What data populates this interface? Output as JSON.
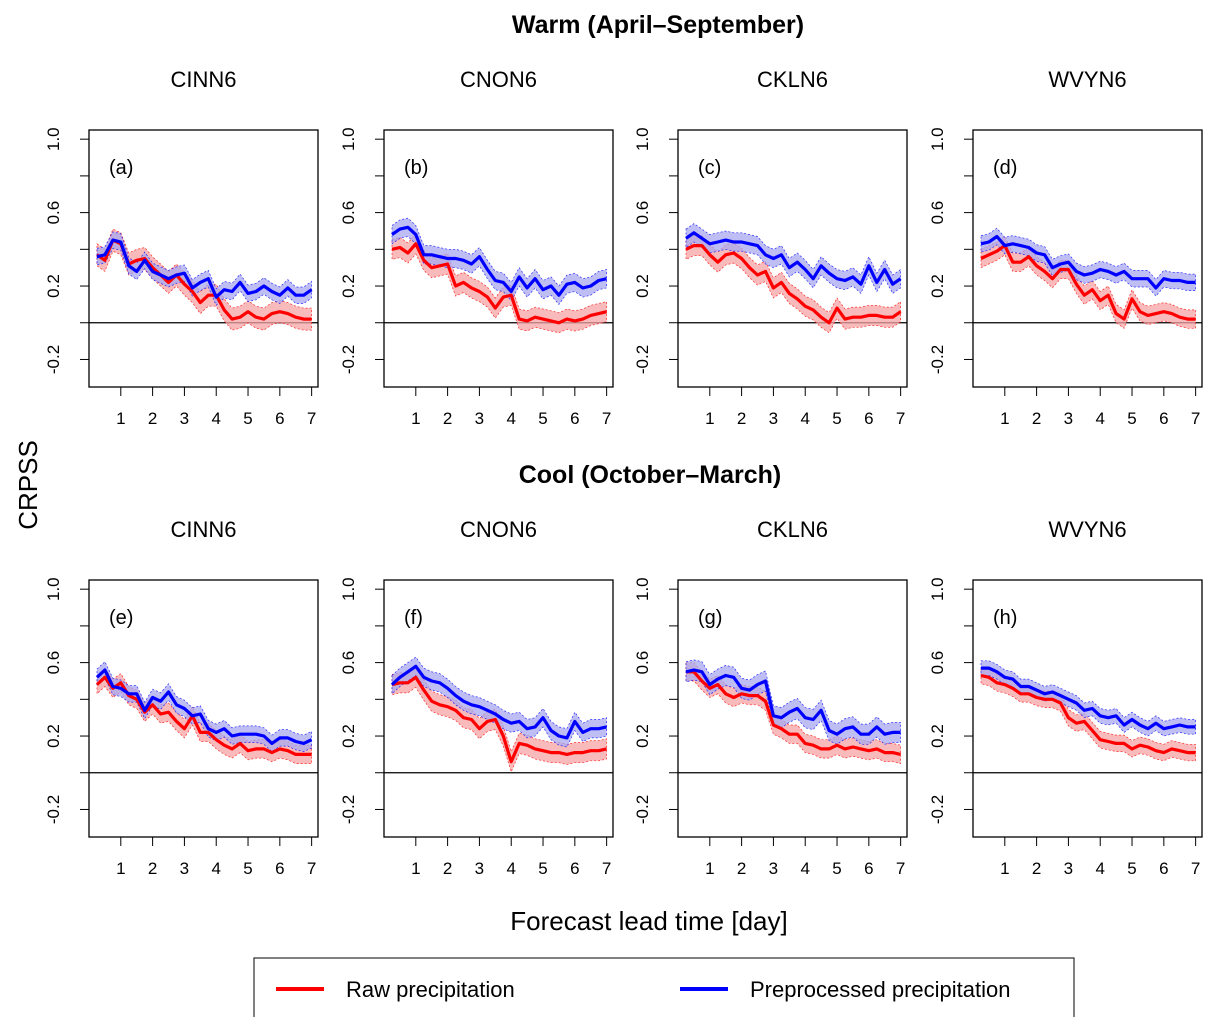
{
  "section_titles": [
    "Warm (April–September)",
    "Cool (October–March)"
  ],
  "ylabel": "CRPSS",
  "xlabel": "Forecast lead time [day]",
  "legend": {
    "raw": "Raw precipitation",
    "pre": "Preprocessed precipitation"
  },
  "colors": {
    "raw": "#ff0000",
    "raw_band": "#f5a3a3",
    "pre": "#0000ff",
    "pre_band": "#a8a8f0"
  },
  "chart_data": [
    {
      "type": "line",
      "section": "Warm (April–September)",
      "title": "CINN6",
      "panel_label": "(a)",
      "xticks": [
        1,
        2,
        3,
        4,
        5,
        6,
        7
      ],
      "yticks": [
        1.0,
        0.6,
        0.2,
        -0.2
      ],
      "zero_line": 0,
      "ylim": [
        -0.35,
        1.05
      ],
      "xlim": [
        0,
        7.2
      ],
      "x": [
        0.25,
        0.5,
        0.75,
        1.0,
        1.25,
        1.5,
        1.75,
        2.0,
        2.25,
        2.5,
        2.75,
        3.0,
        3.25,
        3.5,
        3.75,
        4.0,
        4.25,
        4.5,
        4.75,
        5.0,
        5.25,
        5.5,
        5.75,
        6.0,
        6.25,
        6.5,
        6.75,
        7.0
      ],
      "series": [
        {
          "name": "Raw precipitation",
          "values": [
            0.37,
            0.34,
            0.45,
            0.43,
            0.32,
            0.34,
            0.35,
            0.3,
            0.26,
            0.22,
            0.26,
            0.21,
            0.17,
            0.11,
            0.15,
            0.15,
            0.07,
            0.02,
            0.03,
            0.06,
            0.03,
            0.02,
            0.05,
            0.06,
            0.05,
            0.03,
            0.02,
            0.02
          ],
          "band": 0.06
        },
        {
          "name": "Preprocessed precipitation",
          "values": [
            0.36,
            0.37,
            0.45,
            0.44,
            0.31,
            0.28,
            0.34,
            0.28,
            0.26,
            0.24,
            0.26,
            0.27,
            0.19,
            0.22,
            0.24,
            0.14,
            0.18,
            0.17,
            0.22,
            0.16,
            0.17,
            0.2,
            0.17,
            0.15,
            0.19,
            0.15,
            0.15,
            0.18
          ],
          "band": 0.045
        }
      ]
    },
    {
      "type": "line",
      "section": "Warm (April–September)",
      "title": "CNON6",
      "panel_label": "(b)",
      "xticks": [
        1,
        2,
        3,
        4,
        5,
        6,
        7
      ],
      "yticks": [
        1.0,
        0.6,
        0.2,
        -0.2
      ],
      "zero_line": 0,
      "ylim": [
        -0.35,
        1.05
      ],
      "xlim": [
        0,
        7.2
      ],
      "x": [
        0.25,
        0.5,
        0.75,
        1.0,
        1.25,
        1.5,
        1.75,
        2.0,
        2.25,
        2.5,
        2.75,
        3.0,
        3.25,
        3.5,
        3.75,
        4.0,
        4.25,
        4.5,
        4.75,
        5.0,
        5.25,
        5.5,
        5.75,
        6.0,
        6.25,
        6.5,
        6.75,
        7.0
      ],
      "series": [
        {
          "name": "Raw precipitation",
          "values": [
            0.4,
            0.41,
            0.38,
            0.43,
            0.34,
            0.3,
            0.31,
            0.32,
            0.2,
            0.22,
            0.19,
            0.17,
            0.14,
            0.08,
            0.14,
            0.15,
            0.02,
            0.01,
            0.03,
            0.02,
            0.01,
            0.0,
            0.02,
            0.01,
            0.02,
            0.04,
            0.05,
            0.06
          ],
          "band": 0.055
        },
        {
          "name": "Preprocessed precipitation",
          "values": [
            0.48,
            0.51,
            0.52,
            0.48,
            0.37,
            0.37,
            0.36,
            0.35,
            0.35,
            0.34,
            0.32,
            0.36,
            0.29,
            0.23,
            0.22,
            0.17,
            0.25,
            0.19,
            0.24,
            0.18,
            0.2,
            0.15,
            0.21,
            0.22,
            0.19,
            0.2,
            0.23,
            0.24
          ],
          "band": 0.05
        }
      ]
    },
    {
      "type": "line",
      "section": "Warm (April–September)",
      "title": "CKLN6",
      "panel_label": "(c)",
      "xticks": [
        1,
        2,
        3,
        4,
        5,
        6,
        7
      ],
      "yticks": [
        1.0,
        0.6,
        0.2,
        -0.2
      ],
      "zero_line": 0,
      "ylim": [
        -0.35,
        1.05
      ],
      "xlim": [
        0,
        7.2
      ],
      "x": [
        0.25,
        0.5,
        0.75,
        1.0,
        1.25,
        1.5,
        1.75,
        2.0,
        2.25,
        2.5,
        2.75,
        3.0,
        3.25,
        3.5,
        3.75,
        4.0,
        4.25,
        4.5,
        4.75,
        5.0,
        5.25,
        5.5,
        5.75,
        6.0,
        6.25,
        6.5,
        6.75,
        7.0
      ],
      "series": [
        {
          "name": "Raw precipitation",
          "values": [
            0.4,
            0.42,
            0.42,
            0.37,
            0.33,
            0.37,
            0.38,
            0.35,
            0.3,
            0.26,
            0.28,
            0.19,
            0.22,
            0.16,
            0.13,
            0.09,
            0.07,
            0.03,
            0.0,
            0.08,
            0.02,
            0.03,
            0.03,
            0.04,
            0.04,
            0.03,
            0.03,
            0.06
          ],
          "band": 0.055
        },
        {
          "name": "Preprocessed precipitation",
          "values": [
            0.46,
            0.49,
            0.46,
            0.43,
            0.44,
            0.45,
            0.44,
            0.44,
            0.43,
            0.42,
            0.37,
            0.35,
            0.37,
            0.3,
            0.33,
            0.29,
            0.24,
            0.31,
            0.27,
            0.24,
            0.23,
            0.25,
            0.21,
            0.31,
            0.22,
            0.29,
            0.21,
            0.24
          ],
          "band": 0.05
        }
      ]
    },
    {
      "type": "line",
      "section": "Warm (April–September)",
      "title": "WVYN6",
      "panel_label": "(d)",
      "xticks": [
        1,
        2,
        3,
        4,
        5,
        6,
        7
      ],
      "yticks": [
        1.0,
        0.6,
        0.2,
        -0.2
      ],
      "zero_line": 0,
      "ylim": [
        -0.35,
        1.05
      ],
      "xlim": [
        0,
        7.2
      ],
      "x": [
        0.25,
        0.5,
        0.75,
        1.0,
        1.25,
        1.5,
        1.75,
        2.0,
        2.25,
        2.5,
        2.75,
        3.0,
        3.25,
        3.5,
        3.75,
        4.0,
        4.25,
        4.5,
        4.75,
        5.0,
        5.25,
        5.5,
        5.75,
        6.0,
        6.25,
        6.5,
        6.75,
        7.0
      ],
      "series": [
        {
          "name": "Raw precipitation",
          "values": [
            0.35,
            0.37,
            0.39,
            0.42,
            0.33,
            0.33,
            0.36,
            0.31,
            0.28,
            0.24,
            0.29,
            0.29,
            0.21,
            0.15,
            0.18,
            0.12,
            0.15,
            0.05,
            0.02,
            0.13,
            0.06,
            0.04,
            0.05,
            0.06,
            0.05,
            0.03,
            0.02,
            0.02
          ],
          "band": 0.05
        },
        {
          "name": "Preprocessed precipitation",
          "values": [
            0.43,
            0.44,
            0.47,
            0.42,
            0.43,
            0.42,
            0.41,
            0.38,
            0.37,
            0.3,
            0.32,
            0.33,
            0.28,
            0.26,
            0.27,
            0.29,
            0.28,
            0.26,
            0.28,
            0.24,
            0.24,
            0.24,
            0.19,
            0.24,
            0.23,
            0.23,
            0.22,
            0.22
          ],
          "band": 0.045
        }
      ]
    },
    {
      "type": "line",
      "section": "Cool (October–March)",
      "title": "CINN6",
      "panel_label": "(e)",
      "xticks": [
        1,
        2,
        3,
        4,
        5,
        6,
        7
      ],
      "yticks": [
        1.0,
        0.6,
        0.2,
        -0.2
      ],
      "zero_line": 0,
      "ylim": [
        -0.35,
        1.05
      ],
      "xlim": [
        0,
        7.2
      ],
      "x": [
        0.25,
        0.5,
        0.75,
        1.0,
        1.25,
        1.5,
        1.75,
        2.0,
        2.25,
        2.5,
        2.75,
        3.0,
        3.25,
        3.5,
        3.75,
        4.0,
        4.25,
        4.5,
        4.75,
        5.0,
        5.25,
        5.5,
        5.75,
        6.0,
        6.25,
        6.5,
        6.75,
        7.0
      ],
      "series": [
        {
          "name": "Raw precipitation",
          "values": [
            0.48,
            0.52,
            0.46,
            0.49,
            0.42,
            0.4,
            0.33,
            0.37,
            0.32,
            0.33,
            0.28,
            0.24,
            0.31,
            0.22,
            0.22,
            0.18,
            0.15,
            0.13,
            0.16,
            0.12,
            0.13,
            0.13,
            0.11,
            0.13,
            0.12,
            0.1,
            0.1,
            0.1
          ],
          "band": 0.05
        },
        {
          "name": "Preprocessed precipitation",
          "values": [
            0.52,
            0.56,
            0.47,
            0.46,
            0.43,
            0.43,
            0.34,
            0.41,
            0.39,
            0.44,
            0.37,
            0.35,
            0.31,
            0.32,
            0.24,
            0.22,
            0.24,
            0.2,
            0.21,
            0.21,
            0.21,
            0.2,
            0.16,
            0.19,
            0.19,
            0.17,
            0.16,
            0.18
          ],
          "band": 0.045
        }
      ]
    },
    {
      "type": "line",
      "section": "Cool (October–March)",
      "title": "CNON6",
      "panel_label": "(f)",
      "xticks": [
        1,
        2,
        3,
        4,
        5,
        6,
        7
      ],
      "yticks": [
        1.0,
        0.6,
        0.2,
        -0.2
      ],
      "zero_line": 0,
      "ylim": [
        -0.35,
        1.05
      ],
      "xlim": [
        0,
        7.2
      ],
      "x": [
        0.25,
        0.5,
        0.75,
        1.0,
        1.25,
        1.5,
        1.75,
        2.0,
        2.25,
        2.5,
        2.75,
        3.0,
        3.25,
        3.5,
        3.75,
        4.0,
        4.25,
        4.5,
        4.75,
        5.0,
        5.25,
        5.5,
        5.75,
        6.0,
        6.25,
        6.5,
        6.75,
        7.0
      ],
      "series": [
        {
          "name": "Raw precipitation",
          "values": [
            0.48,
            0.49,
            0.49,
            0.52,
            0.45,
            0.39,
            0.37,
            0.36,
            0.34,
            0.3,
            0.29,
            0.24,
            0.28,
            0.29,
            0.2,
            0.06,
            0.16,
            0.15,
            0.13,
            0.12,
            0.11,
            0.11,
            0.1,
            0.11,
            0.11,
            0.12,
            0.12,
            0.13
          ],
          "band": 0.055
        },
        {
          "name": "Preprocessed precipitation",
          "values": [
            0.48,
            0.52,
            0.55,
            0.58,
            0.52,
            0.5,
            0.49,
            0.46,
            0.42,
            0.39,
            0.37,
            0.36,
            0.34,
            0.32,
            0.29,
            0.27,
            0.28,
            0.24,
            0.25,
            0.3,
            0.23,
            0.2,
            0.19,
            0.28,
            0.22,
            0.24,
            0.24,
            0.25
          ],
          "band": 0.05
        }
      ]
    },
    {
      "type": "line",
      "section": "Cool (October–March)",
      "title": "CKLN6",
      "panel_label": "(g)",
      "xticks": [
        1,
        2,
        3,
        4,
        5,
        6,
        7
      ],
      "yticks": [
        1.0,
        0.6,
        0.2,
        -0.2
      ],
      "zero_line": 0,
      "ylim": [
        -0.35,
        1.05
      ],
      "xlim": [
        0,
        7.2
      ],
      "x": [
        0.25,
        0.5,
        0.75,
        1.0,
        1.25,
        1.5,
        1.75,
        2.0,
        2.25,
        2.5,
        2.75,
        3.0,
        3.25,
        3.5,
        3.75,
        4.0,
        4.25,
        4.5,
        4.75,
        5.0,
        5.25,
        5.5,
        5.75,
        6.0,
        6.25,
        6.5,
        6.75,
        7.0
      ],
      "series": [
        {
          "name": "Raw precipitation",
          "values": [
            0.55,
            0.55,
            0.5,
            0.46,
            0.48,
            0.43,
            0.41,
            0.43,
            0.42,
            0.42,
            0.39,
            0.26,
            0.24,
            0.21,
            0.21,
            0.16,
            0.15,
            0.13,
            0.13,
            0.15,
            0.13,
            0.14,
            0.13,
            0.12,
            0.13,
            0.11,
            0.11,
            0.1
          ],
          "band": 0.05
        },
        {
          "name": "Preprocessed precipitation",
          "values": [
            0.55,
            0.56,
            0.55,
            0.48,
            0.51,
            0.53,
            0.52,
            0.46,
            0.45,
            0.48,
            0.5,
            0.31,
            0.3,
            0.33,
            0.35,
            0.3,
            0.29,
            0.34,
            0.23,
            0.21,
            0.24,
            0.25,
            0.21,
            0.21,
            0.25,
            0.21,
            0.22,
            0.22
          ],
          "band": 0.055
        }
      ]
    },
    {
      "type": "line",
      "section": "Cool (October–March)",
      "title": "WVYN6",
      "panel_label": "(h)",
      "xticks": [
        1,
        2,
        3,
        4,
        5,
        6,
        7
      ],
      "yticks": [
        1.0,
        0.6,
        0.2,
        -0.2
      ],
      "zero_line": 0,
      "ylim": [
        -0.35,
        1.05
      ],
      "xlim": [
        0,
        7.2
      ],
      "x": [
        0.25,
        0.5,
        0.75,
        1.0,
        1.25,
        1.5,
        1.75,
        2.0,
        2.25,
        2.5,
        2.75,
        3.0,
        3.25,
        3.5,
        3.75,
        4.0,
        4.25,
        4.5,
        4.75,
        5.0,
        5.25,
        5.5,
        5.75,
        6.0,
        6.25,
        6.5,
        6.75,
        7.0
      ],
      "series": [
        {
          "name": "Raw precipitation",
          "values": [
            0.53,
            0.52,
            0.49,
            0.48,
            0.46,
            0.43,
            0.43,
            0.41,
            0.4,
            0.4,
            0.38,
            0.3,
            0.27,
            0.28,
            0.23,
            0.18,
            0.17,
            0.16,
            0.16,
            0.13,
            0.15,
            0.14,
            0.12,
            0.11,
            0.13,
            0.12,
            0.11,
            0.11
          ],
          "band": 0.045
        },
        {
          "name": "Preprocessed precipitation",
          "values": [
            0.57,
            0.57,
            0.55,
            0.52,
            0.51,
            0.47,
            0.47,
            0.45,
            0.43,
            0.44,
            0.42,
            0.4,
            0.38,
            0.34,
            0.35,
            0.31,
            0.3,
            0.31,
            0.26,
            0.29,
            0.26,
            0.24,
            0.27,
            0.24,
            0.25,
            0.26,
            0.25,
            0.25
          ],
          "band": 0.04
        }
      ]
    }
  ]
}
